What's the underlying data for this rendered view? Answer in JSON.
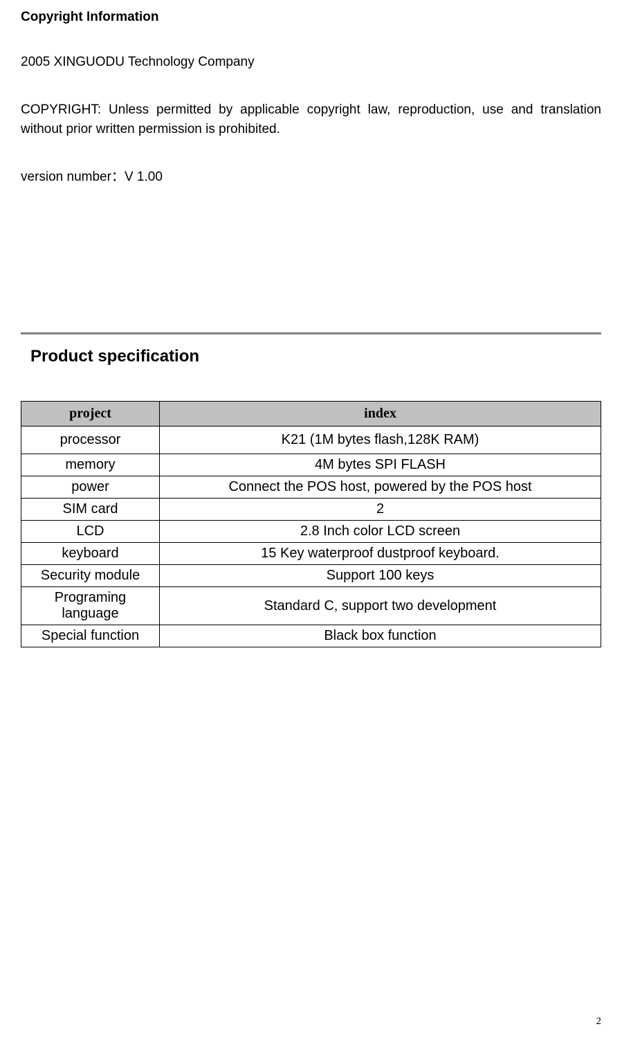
{
  "copyright": {
    "heading": "Copyright Information",
    "company": "2005 XINGUODU Technology Company",
    "notice": "COPYRIGHT: Unless permitted by applicable copyright law, reproduction, use and translation without prior written permission is prohibited.",
    "version": "version number：V 1.00"
  },
  "section_title": "Product specification",
  "table": {
    "headers": {
      "col1": "project",
      "col2": "index"
    },
    "rows": [
      {
        "project": "processor",
        "index": "K21 (1M bytes flash,128K RAM)"
      },
      {
        "project": "memory",
        "index": "4M bytes SPI FLASH"
      },
      {
        "project": "power",
        "index": "Connect the POS host, powered by the POS host"
      },
      {
        "project": "SIM card",
        "index": "2"
      },
      {
        "project": "LCD",
        "index": "2.8 Inch color LCD screen"
      },
      {
        "project": "keyboard",
        "index": "15 Key waterproof dustproof keyboard."
      },
      {
        "project": "Security module",
        "index": "Support 100 keys"
      },
      {
        "project": "Programing language",
        "index": "Standard C, support two development"
      },
      {
        "project": "Special function",
        "index": "Black box function"
      }
    ]
  },
  "page_number": "2"
}
